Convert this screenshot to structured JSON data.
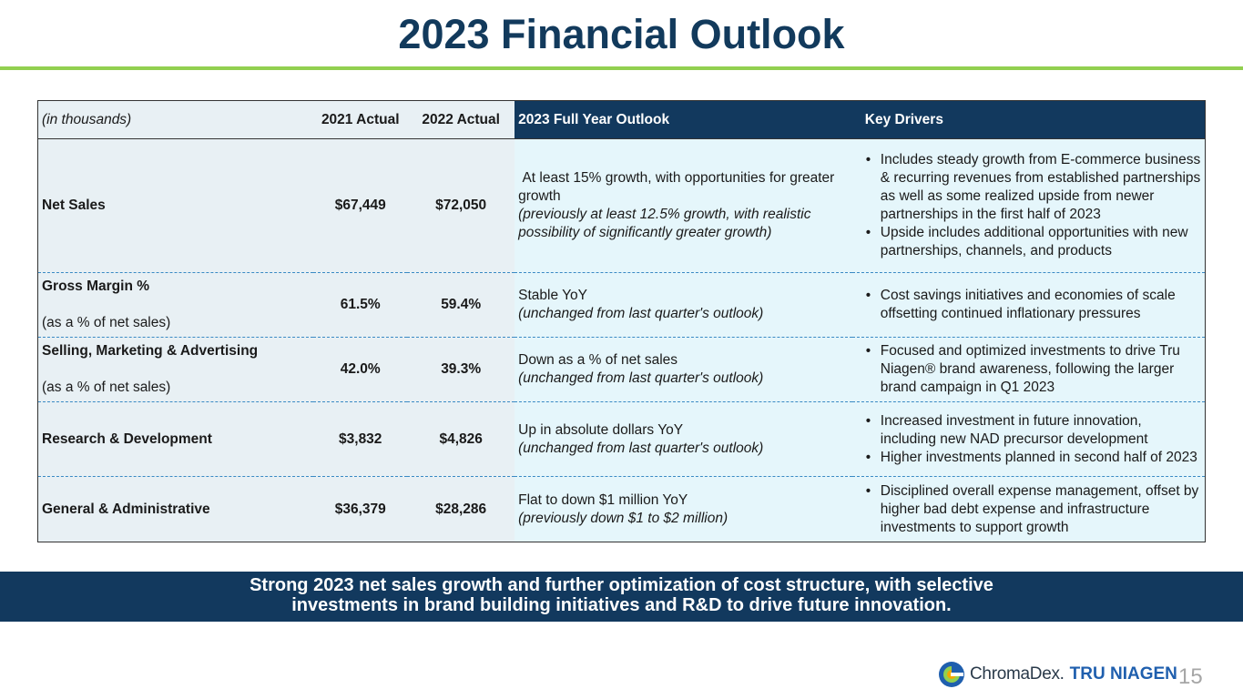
{
  "title": "2023 Financial Outlook",
  "table": {
    "headers": {
      "label": "(in thousands)",
      "y2021": "2021 Actual",
      "y2022": "2022 Actual",
      "outlook": "2023 Full Year Outlook",
      "drivers": "Key Drivers"
    },
    "rows": [
      {
        "metric": "Net Sales",
        "sub": "",
        "y2021": "$67,449",
        "y2022": "$72,050",
        "outlook": " At least 15% growth, with opportunities for greater growth",
        "outlook_note": "(previously at least 12.5% growth, with realistic possibility of significantly greater growth)",
        "drivers": [
          "Includes steady growth from E-commerce business & recurring revenues from established partnerships as well as some realized upside from newer partnerships in the first half of 2023",
          "Upside includes additional opportunities with new partnerships, channels, and products"
        ]
      },
      {
        "metric": "Gross Margin %",
        "sub": "(as a % of net sales)",
        "y2021": "61.5%",
        "y2022": "59.4%",
        "outlook": "Stable YoY",
        "outlook_note": "(unchanged from last quarter's outlook)",
        "drivers": [
          "Cost savings initiatives and economies of scale offsetting continued inflationary pressures"
        ]
      },
      {
        "metric": "Selling, Marketing & Advertising",
        "sub": "(as a % of net sales)",
        "y2021": "42.0%",
        "y2022": "39.3%",
        "outlook": "Down as a % of net sales",
        "outlook_note": "(unchanged from last quarter's outlook)",
        "drivers": [
          "Focused and optimized investments to drive Tru Niagen® brand awareness, following the larger brand campaign in Q1 2023"
        ]
      },
      {
        "metric": "Research & Development",
        "sub": "",
        "y2021": "$3,832",
        "y2022": "$4,826",
        "outlook": "Up in absolute dollars YoY",
        "outlook_note": "(unchanged from last quarter's outlook)",
        "drivers": [
          "Increased investment in future innovation, including new NAD precursor development",
          "Higher investments planned in second half of 2023"
        ]
      },
      {
        "metric": "General & Administrative",
        "sub": "",
        "y2021": "$36,379",
        "y2022": "$28,286",
        "outlook": "Flat to down $1 million YoY",
        "outlook_note": "(previously down $1 to $2 million)",
        "drivers": [
          "Disciplined overall expense management, offset by higher bad debt expense and infrastructure investments to support growth"
        ]
      }
    ]
  },
  "banner": {
    "line1": "Strong 2023 net sales growth and further optimization of cost structure, with selective",
    "line2": "investments in brand building initiatives and R&D to drive future innovation."
  },
  "logo": {
    "company": "ChromaDex.",
    "brand": "TRU NIAGEN",
    "mark_colors": [
      "#1f5fae",
      "#92d050",
      "#f2a900"
    ]
  },
  "page_number": "15"
}
